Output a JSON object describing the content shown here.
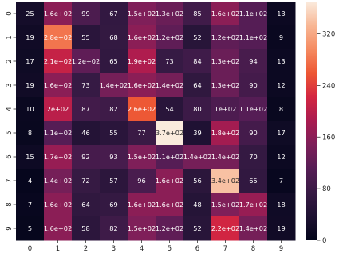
{
  "chart_data": {
    "type": "heatmap",
    "title": "",
    "xlabel": "",
    "ylabel": "",
    "x_categories": [
      "0",
      "1",
      "2",
      "3",
      "4",
      "5",
      "6",
      "7",
      "8",
      "9"
    ],
    "y_categories": [
      "0",
      "1",
      "2",
      "3",
      "4",
      "5",
      "6",
      "7",
      "8",
      "9"
    ],
    "values": [
      [
        25,
        160,
        99,
        67,
        150,
        130,
        85,
        160,
        110,
        13
      ],
      [
        19,
        280,
        55,
        68,
        160,
        120,
        52,
        120,
        110,
        9
      ],
      [
        17,
        210,
        120,
        65,
        190,
        73,
        84,
        130,
        94,
        13
      ],
      [
        19,
        160,
        73,
        140,
        160,
        140,
        64,
        130,
        90,
        12
      ],
      [
        10,
        200,
        87,
        82,
        260,
        54,
        80,
        100,
        110,
        8
      ],
      [
        8,
        110,
        46,
        55,
        77,
        370,
        39,
        180,
        90,
        17
      ],
      [
        15,
        170,
        92,
        93,
        150,
        110,
        140,
        140,
        70,
        12
      ],
      [
        4,
        140,
        72,
        57,
        96,
        160,
        56,
        340,
        65,
        7
      ],
      [
        7,
        160,
        64,
        69,
        160,
        160,
        48,
        150,
        170,
        18
      ],
      [
        5,
        160,
        58,
        82,
        150,
        120,
        52,
        220,
        140,
        19
      ]
    ],
    "labels": [
      [
        "25",
        "1.6e+02",
        "99",
        "67",
        "1.5e+02",
        "1.3e+02",
        "85",
        "1.6e+02",
        "1.1e+02",
        "13"
      ],
      [
        "19",
        "2.8e+02",
        "55",
        "68",
        "1.6e+02",
        "1.2e+02",
        "52",
        "1.2e+02",
        "1.1e+02",
        "9"
      ],
      [
        "17",
        "2.1e+02",
        "1.2e+02",
        "65",
        "1.9e+02",
        "73",
        "84",
        "1.3e+02",
        "94",
        "13"
      ],
      [
        "19",
        "1.6e+02",
        "73",
        "1.4e+02",
        "1.6e+02",
        "1.4e+02",
        "64",
        "1.3e+02",
        "90",
        "12"
      ],
      [
        "10",
        "2e+02",
        "87",
        "82",
        "2.6e+02",
        "54",
        "80",
        "1e+02",
        "1.1e+02",
        "8"
      ],
      [
        "8",
        "1.1e+02",
        "46",
        "55",
        "77",
        "3.7e+02",
        "39",
        "1.8e+02",
        "90",
        "17"
      ],
      [
        "15",
        "1.7e+02",
        "92",
        "93",
        "1.5e+02",
        "1.1e+02",
        "1.4e+02",
        "1.4e+02",
        "70",
        "12"
      ],
      [
        "4",
        "1.4e+02",
        "72",
        "57",
        "96",
        "1.6e+02",
        "56",
        "3.4e+02",
        "65",
        "7"
      ],
      [
        "7",
        "1.6e+02",
        "64",
        "69",
        "1.6e+02",
        "1.6e+02",
        "48",
        "1.5e+02",
        "1.7e+02",
        "18"
      ],
      [
        "5",
        "1.6e+02",
        "58",
        "82",
        "1.5e+02",
        "1.2e+02",
        "52",
        "2.2e+02",
        "1.4e+02",
        "19"
      ]
    ],
    "colormap": "rocket",
    "colorbar": {
      "range": [
        0,
        370
      ],
      "ticks": [
        0,
        80,
        160,
        240,
        320
      ]
    }
  }
}
